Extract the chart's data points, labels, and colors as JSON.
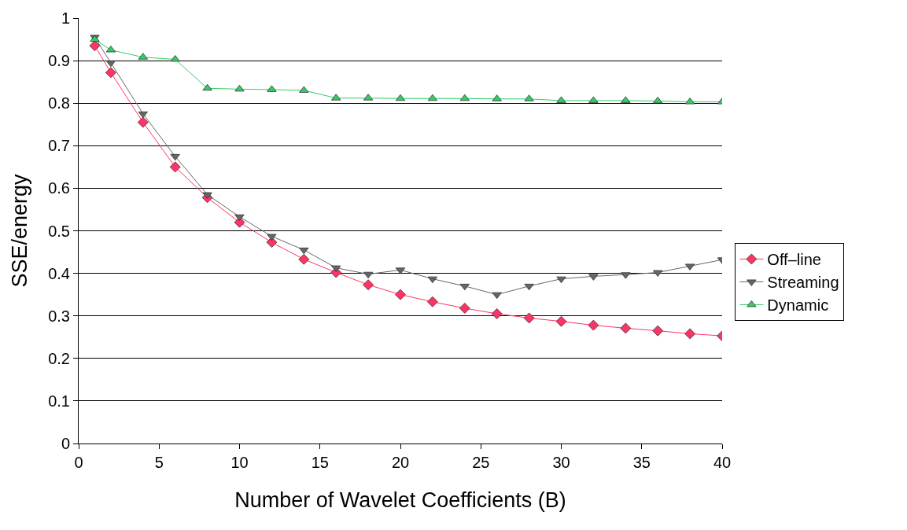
{
  "chart_data": {
    "type": "line",
    "xlabel": "Number of Wavelet Coefficients (B)",
    "ylabel": "SSE/energy",
    "x": [
      1,
      2,
      4,
      6,
      8,
      10,
      12,
      14,
      16,
      18,
      20,
      22,
      24,
      26,
      28,
      30,
      32,
      34,
      36,
      38,
      40
    ],
    "series": [
      {
        "name": "Off–line",
        "color": "#ff3366",
        "marker": "diamond",
        "values": [
          0.935,
          0.872,
          0.755,
          0.65,
          0.578,
          0.52,
          0.473,
          0.433,
          0.402,
          0.373,
          0.35,
          0.333,
          0.318,
          0.305,
          0.295,
          0.287,
          0.278,
          0.271,
          0.265,
          0.258,
          0.253
        ]
      },
      {
        "name": "Streaming",
        "color": "#666666",
        "marker": "triangle-down",
        "values": [
          0.955,
          0.895,
          0.775,
          0.675,
          0.585,
          0.533,
          0.487,
          0.455,
          0.413,
          0.398,
          0.408,
          0.387,
          0.37,
          0.35,
          0.37,
          0.387,
          0.393,
          0.397,
          0.402,
          0.417,
          0.432
        ]
      },
      {
        "name": "Dynamic",
        "color": "#33cc66",
        "marker": "triangle",
        "values": [
          0.95,
          0.925,
          0.908,
          0.903,
          0.835,
          0.833,
          0.832,
          0.83,
          0.812,
          0.812,
          0.811,
          0.811,
          0.811,
          0.81,
          0.81,
          0.806,
          0.806,
          0.806,
          0.805,
          0.803,
          0.803
        ]
      }
    ],
    "xlim": [
      0,
      40
    ],
    "xticks": [
      0,
      5,
      10,
      15,
      20,
      25,
      30,
      35,
      40
    ],
    "ylim": [
      0,
      1
    ],
    "yticks": [
      0,
      0.1,
      0.2,
      0.3,
      0.4,
      0.5,
      0.6,
      0.7,
      0.8,
      0.9,
      1
    ],
    "grid": "y",
    "legend": "right",
    "line_style": "solid"
  }
}
